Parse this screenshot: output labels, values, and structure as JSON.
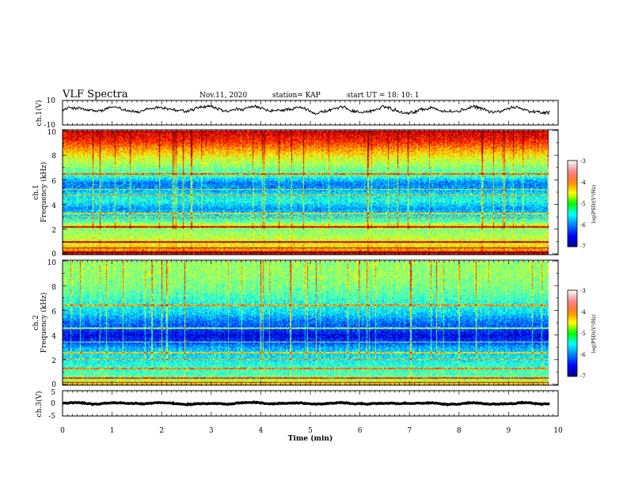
{
  "header": {
    "title": "VLF Spectra",
    "date": "Nov.11, 2020",
    "station": "station= KAP",
    "start": "start  UT =   18: 10: 1"
  },
  "chart_data": [
    {
      "type": "line",
      "name": "ch1-waveform",
      "ylabel": "ch.1(V)",
      "ylim": [
        -10,
        10
      ],
      "ytick_labels": [
        "10",
        "-10"
      ],
      "xlim": [
        0,
        10
      ],
      "x_data_end": 9.83,
      "mean": 2.5,
      "amplitude": 3.5
    },
    {
      "type": "heatmap",
      "name": "ch1-spectrogram",
      "ylabel": "ch.1\nFrequency  (kHz)",
      "ylim": [
        0,
        10
      ],
      "ytick_labels": [
        "0",
        "2",
        "4",
        "6",
        "8",
        "10"
      ],
      "xlim": [
        0,
        10
      ],
      "x_data_end": 9.83,
      "log_psd_range": [
        -7,
        -3
      ],
      "profile_khz": [
        0,
        0.3,
        0.6,
        1.0,
        1.5,
        2.0,
        2.3,
        2.7,
        3.2,
        3.7,
        4.3,
        4.8,
        5.3,
        5.8,
        6.3,
        7.0,
        7.8,
        8.5,
        9.2,
        10.0
      ],
      "profile_log_psd": [
        -3.4,
        -4.0,
        -4.4,
        -4.6,
        -4.8,
        -5.0,
        -4.5,
        -5.2,
        -5.6,
        -5.9,
        -5.4,
        -5.5,
        -5.9,
        -6.0,
        -5.3,
        -5.0,
        -4.6,
        -4.1,
        -3.6,
        -3.3
      ],
      "tones_khz": [
        0.15,
        0.5,
        1.0,
        2.2,
        2.95,
        3.3,
        4.8,
        5.25,
        6.5
      ],
      "colorbar": {
        "label": "log(PSD)(V²/Hz)",
        "tick_labels": [
          "-3",
          "-4",
          "-5",
          "-6",
          "-7"
        ]
      }
    },
    {
      "type": "heatmap",
      "name": "ch2-spectrogram",
      "ylabel": "ch.2\nFrequency  (kHz)",
      "ylim": [
        0,
        10
      ],
      "ytick_labels": [
        "0",
        "2",
        "4",
        "6",
        "8",
        "10"
      ],
      "xlim": [
        0,
        10
      ],
      "x_data_end": 9.83,
      "log_psd_range": [
        -7,
        -3
      ],
      "profile_khz": [
        0,
        0.3,
        0.8,
        1.4,
        2.0,
        2.5,
        3.0,
        3.5,
        4.0,
        4.6,
        5.2,
        5.8,
        6.5,
        7.2,
        8.0,
        9.0,
        10.0
      ],
      "profile_log_psd": [
        -4.2,
        -4.8,
        -5.2,
        -5.3,
        -5.5,
        -5.6,
        -5.8,
        -6.3,
        -6.6,
        -6.2,
        -6.0,
        -5.6,
        -5.4,
        -5.2,
        -5.0,
        -4.9,
        -4.9
      ],
      "tones_khz": [
        0.2,
        0.55,
        1.3,
        2.05,
        2.6,
        3.45,
        4.6,
        6.45
      ],
      "colorbar": {
        "label": "log(PSD)(V²/Hz)",
        "tick_labels": [
          "-3",
          "-4",
          "-5",
          "-6",
          "-7"
        ]
      }
    },
    {
      "type": "line",
      "name": "ch3-waveform",
      "ylabel": "ch.3(V)",
      "ylim": [
        -5,
        5
      ],
      "ytick_labels": [
        "5",
        "0",
        "-5"
      ],
      "xlim": [
        0,
        10
      ],
      "x_data_end": 9.83,
      "mean": 0,
      "amplitude": 0.5,
      "xlabel": "Time  (min)",
      "xtick_labels": [
        "0",
        "1",
        "2",
        "3",
        "4",
        "5",
        "6",
        "7",
        "8",
        "9",
        "10"
      ]
    }
  ]
}
